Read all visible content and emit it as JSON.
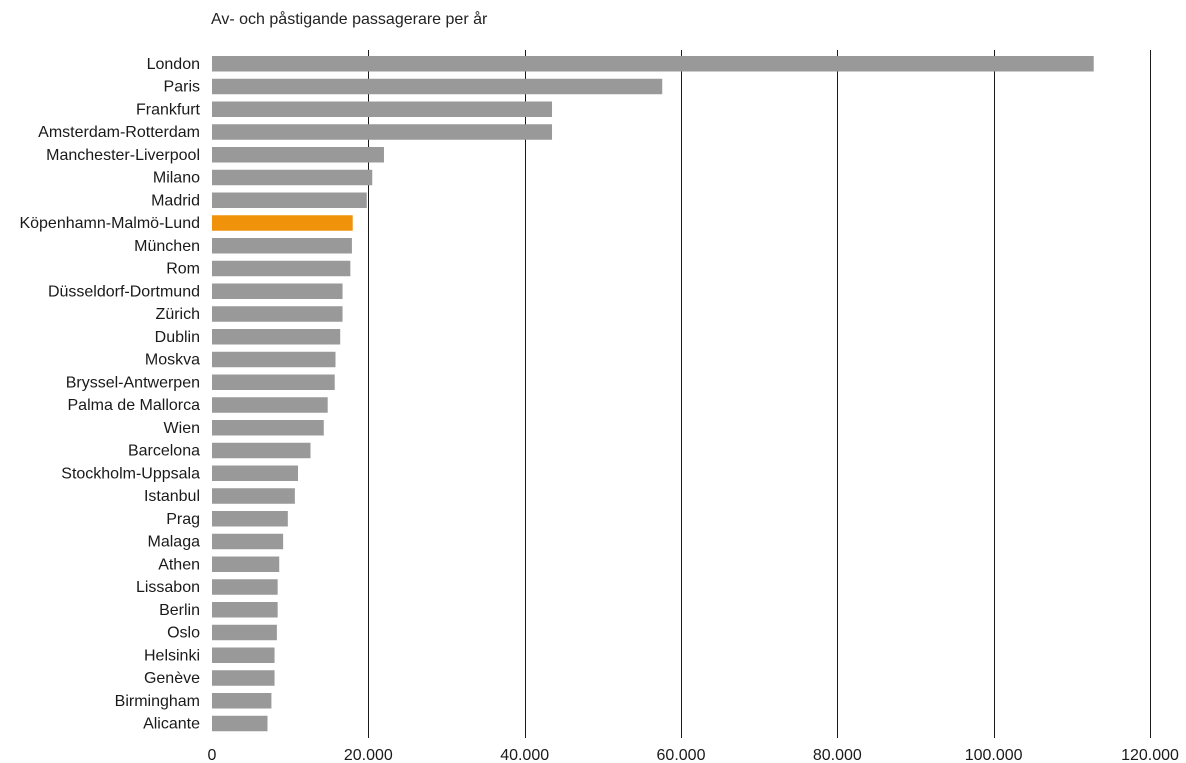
{
  "chart_data": {
    "type": "bar",
    "orientation": "horizontal",
    "title": "Av- och påstigande passagerare per år",
    "xlabel": "",
    "ylabel": "",
    "xlim": [
      0,
      120000
    ],
    "x_ticks": [
      0,
      20000,
      40000,
      60000,
      80000,
      100000,
      120000
    ],
    "x_tick_labels": [
      "0",
      "20.000",
      "40.000",
      "60.000",
      "80.000",
      "100.000",
      "120.000"
    ],
    "grid": "vertical lines at 20.000 intervals",
    "legend": "none",
    "categories": [
      "London",
      "Paris",
      "Frankfurt",
      "Amsterdam-Rotterdam",
      "Manchester-Liverpool",
      "Milano",
      "Madrid",
      "Köpenhamn-Malmö-Lund",
      "München",
      "Rom",
      "Düsseldorf-Dortmund",
      "Zürich",
      "Dublin",
      "Moskva",
      "Bryssel-Antwerpen",
      "Palma de Mallorca",
      "Wien",
      "Barcelona",
      "Stockholm-Uppsala",
      "Istanbul",
      "Prag",
      "Malaga",
      "Athen",
      "Lissabon",
      "Berlin",
      "Oslo",
      "Helsinki",
      "Genève",
      "Birmingham",
      "Alicante"
    ],
    "values": [
      112800,
      57600,
      43500,
      43500,
      22000,
      20500,
      19800,
      18000,
      17900,
      17700,
      16700,
      16700,
      16400,
      15800,
      15700,
      14800,
      14300,
      12600,
      11000,
      10600,
      9700,
      9100,
      8600,
      8400,
      8400,
      8300,
      8000,
      8000,
      7600,
      7100
    ],
    "highlight_category": "Köpenhamn-Malmö-Lund",
    "colors": {
      "bar": "#999999",
      "highlight": "#F0920A",
      "grid": "#1a1a1a",
      "text": "#1a1a1a"
    }
  }
}
